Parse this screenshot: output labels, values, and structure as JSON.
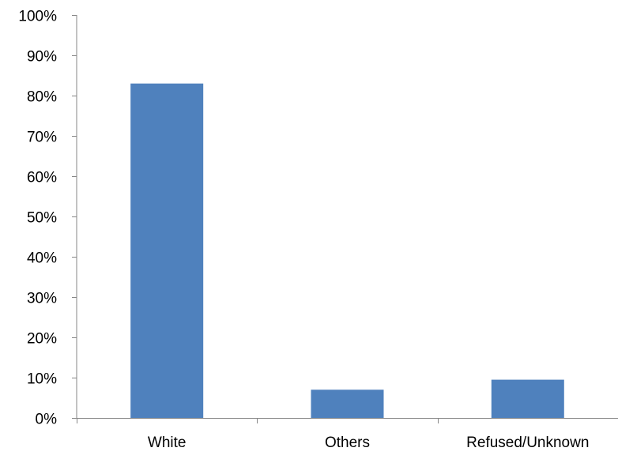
{
  "chart_data": {
    "type": "bar",
    "title": "",
    "xlabel": "",
    "ylabel": "",
    "categories": [
      "White",
      "Others",
      "Refused/Unknown"
    ],
    "values": [
      0.83,
      0.07,
      0.095
    ],
    "ylim": [
      0,
      1
    ],
    "yticks": [
      0,
      0.1,
      0.2,
      0.3,
      0.4,
      0.5,
      0.6,
      0.7,
      0.8,
      0.9,
      1.0
    ],
    "ytick_labels": [
      "0%",
      "10%",
      "20%",
      "30%",
      "40%",
      "50%",
      "60%",
      "70%",
      "80%",
      "90%",
      "100%"
    ],
    "grid": false,
    "legend": "none",
    "bar_color": "#4F81BD"
  }
}
